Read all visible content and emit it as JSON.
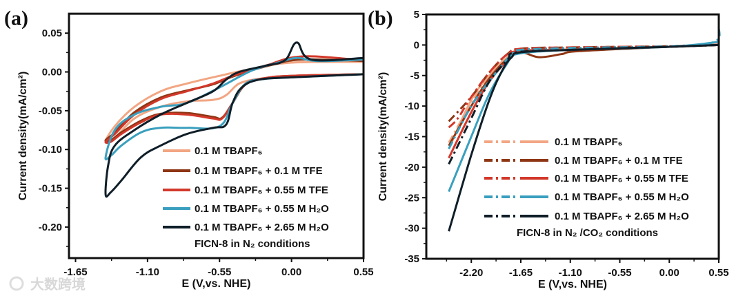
{
  "chart_data": [
    {
      "type": "line",
      "panel_label": "(a)",
      "xlabel": "E (V,vs. NHE)",
      "ylabel": "Current density(mA/cm²)",
      "xlim": [
        -1.7,
        0.55
      ],
      "ylim": [
        -0.24,
        0.075
      ],
      "xticks": [
        "-1.65",
        "-1.10",
        "-0.55",
        "0.00",
        "0.55"
      ],
      "xtick_values": [
        -1.65,
        -1.1,
        -0.55,
        0.0,
        0.55
      ],
      "yticks": [
        "0.05",
        "0.00",
        "-0.05",
        "-0.10",
        "-0.15",
        "-0.20"
      ],
      "ytick_values": [
        0.05,
        0.0,
        -0.05,
        -0.1,
        -0.15,
        -0.2
      ],
      "annotation": "FICN-8 in N₂ conditions",
      "legend_position": "bottom-right",
      "series": [
        {
          "name": "0.1 M TBAPF₆",
          "color": "#f2a683",
          "style": "solid",
          "x": [
            0.55,
            0.0,
            -0.3,
            -0.55,
            -0.8,
            -1.0,
            -1.2,
            -1.35,
            -1.42,
            -1.35,
            -1.2,
            -1.0,
            -0.8,
            -0.6,
            -0.5,
            -0.4,
            -0.25,
            0.0,
            0.55
          ],
          "y": [
            0.013,
            0.012,
            0.004,
            -0.005,
            -0.015,
            -0.025,
            -0.045,
            -0.07,
            -0.09,
            -0.085,
            -0.06,
            -0.045,
            -0.038,
            -0.036,
            -0.03,
            -0.015,
            -0.009,
            -0.005,
            -0.003
          ]
        },
        {
          "name": "0.1 M TBAPF₆ + 0.1   M TFE",
          "color": "#8e3614",
          "style": "solid",
          "x": [
            0.55,
            0.08,
            -0.2,
            -0.45,
            -0.6,
            -0.8,
            -1.0,
            -1.2,
            -1.35,
            -1.42,
            -1.38,
            -1.3,
            -1.15,
            -1.0,
            -0.8,
            -0.6,
            -0.53,
            -0.45,
            -0.35,
            -0.2,
            0.0,
            0.55
          ],
          "y": [
            0.014,
            0.016,
            0.007,
            -0.006,
            -0.016,
            -0.024,
            -0.033,
            -0.052,
            -0.078,
            -0.088,
            -0.088,
            -0.078,
            -0.063,
            -0.054,
            -0.053,
            -0.058,
            -0.059,
            -0.04,
            -0.016,
            -0.008,
            -0.005,
            -0.003
          ]
        },
        {
          "name": "0.1 M TBAPF₆ + 0.55 M TFE",
          "color": "#d2382a",
          "style": "solid",
          "x": [
            0.55,
            0.08,
            -0.2,
            -0.45,
            -0.6,
            -0.8,
            -1.0,
            -1.2,
            -1.35,
            -1.42,
            -1.38,
            -1.3,
            -1.15,
            -1.0,
            -0.8,
            -0.6,
            -0.53,
            -0.45,
            -0.35,
            -0.2,
            0.0,
            0.55
          ],
          "y": [
            0.015,
            0.02,
            0.008,
            -0.005,
            -0.015,
            -0.025,
            -0.035,
            -0.055,
            -0.08,
            -0.09,
            -0.09,
            -0.08,
            -0.065,
            -0.055,
            -0.055,
            -0.06,
            -0.06,
            -0.04,
            -0.015,
            -0.008,
            -0.005,
            -0.003
          ]
        },
        {
          "name": "0.1 M TBAPF₆ + 0.55 M H₂O",
          "color": "#3a9fbe",
          "style": "solid",
          "x": [
            0.55,
            0.2,
            0.04,
            -0.1,
            -0.3,
            -0.55,
            -0.8,
            -1.0,
            -1.2,
            -1.35,
            -1.42,
            -1.38,
            -1.3,
            -1.15,
            -1.0,
            -0.8,
            -0.55,
            -0.45,
            -0.35,
            -0.2,
            0.0,
            0.55
          ],
          "y": [
            0.016,
            0.014,
            0.018,
            0.012,
            0.002,
            -0.02,
            -0.04,
            -0.045,
            -0.055,
            -0.075,
            -0.11,
            -0.108,
            -0.095,
            -0.078,
            -0.072,
            -0.072,
            -0.07,
            -0.04,
            -0.015,
            -0.009,
            -0.007,
            -0.003
          ]
        },
        {
          "name": "0.1 M TBAPF₆ + 2.65 M H₂O",
          "color": "#0f1e28",
          "style": "solid",
          "x": [
            0.55,
            0.15,
            0.04,
            -0.05,
            -0.2,
            -0.4,
            -0.5,
            -0.6,
            -0.8,
            -1.0,
            -1.2,
            -1.35,
            -1.4,
            -1.42,
            -1.38,
            -1.3,
            -1.15,
            -1.0,
            -0.8,
            -0.6,
            -0.5,
            -0.45,
            -0.38,
            -0.25,
            0.0,
            0.55
          ],
          "y": [
            0.018,
            0.016,
            0.038,
            0.015,
            0.008,
            0.0,
            -0.01,
            -0.025,
            -0.04,
            -0.055,
            -0.075,
            -0.095,
            -0.12,
            -0.158,
            -0.155,
            -0.14,
            -0.11,
            -0.095,
            -0.08,
            -0.072,
            -0.068,
            -0.04,
            -0.02,
            -0.01,
            -0.007,
            -0.003
          ]
        }
      ]
    },
    {
      "type": "line",
      "panel_label": "(b)",
      "xlabel": "E (V,vs. NHE)",
      "ylabel": "Current density(mA/cm²)",
      "xlim": [
        -2.7,
        0.55
      ],
      "ylim": [
        -35,
        5
      ],
      "xticks": [
        "-2.20",
        "-1.65",
        "-1.10",
        "-0.55",
        "0.00",
        "0.55"
      ],
      "xtick_values": [
        -2.2,
        -1.65,
        -1.1,
        -0.55,
        0.0,
        0.55
      ],
      "yticks": [
        "5",
        "0",
        "-5",
        "-10",
        "-15",
        "-20",
        "-25",
        "-30",
        "-35"
      ],
      "ytick_values": [
        5,
        0,
        -5,
        -10,
        -15,
        -20,
        -25,
        -30,
        -35
      ],
      "annotation": "FICN-8 in N₂ /CO₂  conditions",
      "legend_position": "bottom-right",
      "series": [
        {
          "name": "0.1 M TBAPF₆",
          "color": "#f2a683",
          "dashdot": {
            "x": [
              -2.45,
              -2.2,
              -2.0,
              -1.8,
              -1.65,
              -1.1,
              0.0,
              0.55
            ],
            "y": [
              -16,
              -9.5,
              -5,
              -2,
              -0.8,
              -0.5,
              -0.2,
              0.3
            ]
          },
          "solid": {
            "x": [
              -2.45,
              -2.2,
              -2.0,
              -1.8,
              -1.65,
              -1.1,
              0.0,
              0.55
            ],
            "y": [
              -17,
              -9,
              -5,
              -2,
              -1,
              -0.7,
              -0.3,
              0
            ]
          }
        },
        {
          "name": "0.1 M TBAPF₆ + 0.1   M TFE",
          "color": "#8e3614",
          "dashdot": {
            "x": [
              -2.45,
              -2.2,
              -2.0,
              -1.8,
              -1.65,
              -1.1,
              0.0,
              0.55
            ],
            "y": [
              -12.5,
              -8.5,
              -4.5,
              -1.5,
              -0.6,
              -0.4,
              -0.2,
              0
            ]
          },
          "solid": {
            "x": [
              -2.45,
              -2.2,
              -2.0,
              -1.8,
              -1.65,
              -1.45,
              -1.2,
              -1.0,
              0.0,
              0.55
            ],
            "y": [
              -16.5,
              -10,
              -5.5,
              -2.3,
              -1.2,
              -2,
              -1.5,
              -1,
              -0.3,
              0
            ]
          }
        },
        {
          "name": "0.1 M TBAPF₆ + 0.55 M TFE",
          "color": "#d2382a",
          "dashdot": {
            "x": [
              -2.45,
              -2.35,
              -2.2,
              -2.0,
              -1.8,
              -1.65,
              -1.1,
              0.0,
              0.55
            ],
            "y": [
              -13.5,
              -12,
              -8.5,
              -4.5,
              -1.5,
              -0.6,
              -0.4,
              -0.2,
              0
            ]
          },
          "solid": {
            "x": [
              -2.45,
              -2.2,
              -2.0,
              -1.8,
              -1.7,
              -1.1,
              0.0,
              0.55
            ],
            "y": [
              -18.5,
              -11,
              -6,
              -2.5,
              -1,
              -0.8,
              -0.3,
              0
            ]
          }
        },
        {
          "name": "0.1 M TBAPF₆ + 0.55 M H₂O",
          "color": "#3a9fbe",
          "dashdot": {
            "x": [
              -2.45,
              -2.2,
              -1.95,
              -1.75,
              -1.65,
              -1.1,
              0.0,
              0.5,
              0.55
            ],
            "y": [
              -17,
              -10,
              -5,
              -1.5,
              -0.8,
              -0.5,
              -0.2,
              0.5,
              3
            ]
          },
          "solid": {
            "x": [
              -2.45,
              -2.2,
              -2.0,
              -1.8,
              -1.7,
              -1.1,
              0.0,
              0.55
            ],
            "y": [
              -24,
              -15,
              -8,
              -3,
              -1.5,
              -0.8,
              -0.3,
              0.5
            ]
          }
        },
        {
          "name": "0.1 M TBAPF₆ + 2.65 M H₂O",
          "color": "#0f1e28",
          "dashdot": {
            "x": [
              -2.45,
              -2.2,
              -2.0,
              -1.8,
              -1.7,
              -1.1,
              0.0,
              0.55
            ],
            "y": [
              -19.5,
              -12,
              -6,
              -2.5,
              -1.2,
              -0.8,
              -0.3,
              0
            ]
          },
          "solid": {
            "x": [
              -2.45,
              -2.2,
              -2.0,
              -1.85,
              -1.75,
              -1.65,
              -1.1,
              0.0,
              0.55
            ],
            "y": [
              -30.5,
              -18,
              -9,
              -4,
              -2,
              -1.2,
              -0.8,
              -0.3,
              0
            ]
          }
        }
      ]
    }
  ],
  "watermark": "大数跨境"
}
